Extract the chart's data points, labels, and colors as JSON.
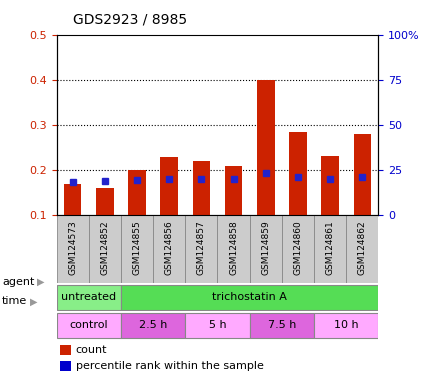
{
  "title": "GDS2923 / 8985",
  "samples": [
    "GSM124573",
    "GSM124852",
    "GSM124855",
    "GSM124856",
    "GSM124857",
    "GSM124858",
    "GSM124859",
    "GSM124860",
    "GSM124861",
    "GSM124862"
  ],
  "count_values": [
    0.17,
    0.16,
    0.2,
    0.23,
    0.22,
    0.21,
    0.4,
    0.285,
    0.232,
    0.28
  ],
  "percentile_values": [
    18.5,
    18.8,
    19.5,
    20.0,
    20.0,
    20.0,
    23.5,
    21.0,
    20.0,
    21.0
  ],
  "ylim_left": [
    0.1,
    0.5
  ],
  "ylim_right": [
    0,
    100
  ],
  "yticks_left": [
    0.1,
    0.2,
    0.3,
    0.4,
    0.5
  ],
  "yticks_right": [
    0,
    25,
    50,
    75,
    100
  ],
  "ytick_labels_right": [
    "0",
    "25",
    "50",
    "75",
    "100%"
  ],
  "bar_color": "#cc2200",
  "dot_color": "#2222cc",
  "bar_width": 0.55,
  "grid_yticks": [
    0.2,
    0.3,
    0.4
  ],
  "agent_labels": [
    {
      "text": "untreated",
      "start": 0,
      "end": 2,
      "color": "#88ee88"
    },
    {
      "text": "trichostatin A",
      "start": 2,
      "end": 10,
      "color": "#55dd55"
    }
  ],
  "time_labels": [
    {
      "text": "control",
      "start": 0,
      "end": 2,
      "color": "#ffaaff"
    },
    {
      "text": "2.5 h",
      "start": 2,
      "end": 4,
      "color": "#dd66dd"
    },
    {
      "text": "5 h",
      "start": 4,
      "end": 6,
      "color": "#ffaaff"
    },
    {
      "text": "7.5 h",
      "start": 6,
      "end": 8,
      "color": "#dd66dd"
    },
    {
      "text": "10 h",
      "start": 8,
      "end": 10,
      "color": "#ffaaff"
    }
  ],
  "legend_count_label": "count",
  "legend_percentile_label": "percentile rank within the sample",
  "bar_color_left": "#cc2200",
  "dot_color_right": "#0000cc",
  "tick_bg_color": "#cccccc",
  "agent_row_label": "agent",
  "time_row_label": "time",
  "arrow_color": "#999999",
  "spine_color": "#aaaaaa"
}
